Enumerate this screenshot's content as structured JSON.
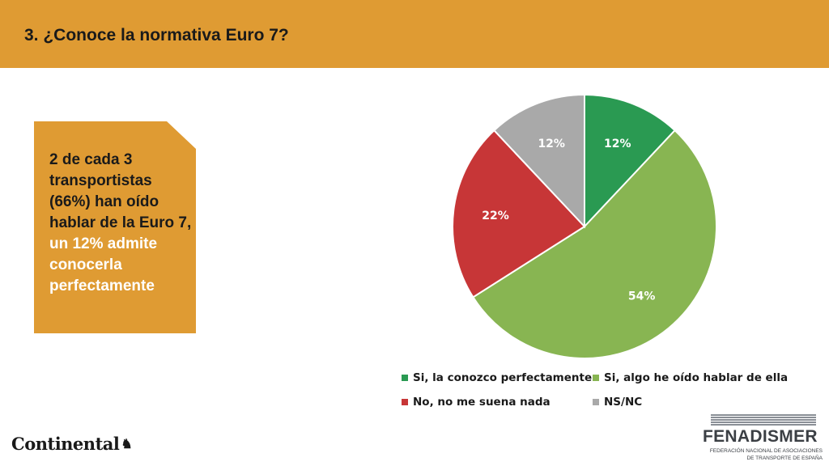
{
  "header": {
    "title": "3. ¿Conoce la normativa Euro 7?"
  },
  "callout": {
    "text_main": "2 de cada 3 transportistas (66%) han oído hablar de la Euro 7, ",
    "text_highlight": "un 12% admite conocerla perfectamente"
  },
  "chart_data": {
    "type": "pie",
    "title": "",
    "slices": [
      {
        "label": "Si, la conozco perfectamente",
        "value": 12,
        "display": "12%",
        "color": "#2a9a52"
      },
      {
        "label": "Si, algo he oído hablar de ella",
        "value": 54,
        "display": "54%",
        "color": "#88b552"
      },
      {
        "label": "No, no me suena nada",
        "value": 22,
        "display": "22%",
        "color": "#c73637"
      },
      {
        "label": "NS/NC",
        "value": 12,
        "display": "12%",
        "color": "#a9a9a9"
      }
    ],
    "legend_position": "bottom"
  },
  "logos": {
    "continental": "Continental",
    "fenadismer": {
      "name": "FENADISMER",
      "line1": "FEDERACIÓN NACIONAL DE ASOCIACIONES",
      "line2": "DE TRANSPORTE DE ESPAÑA"
    }
  }
}
